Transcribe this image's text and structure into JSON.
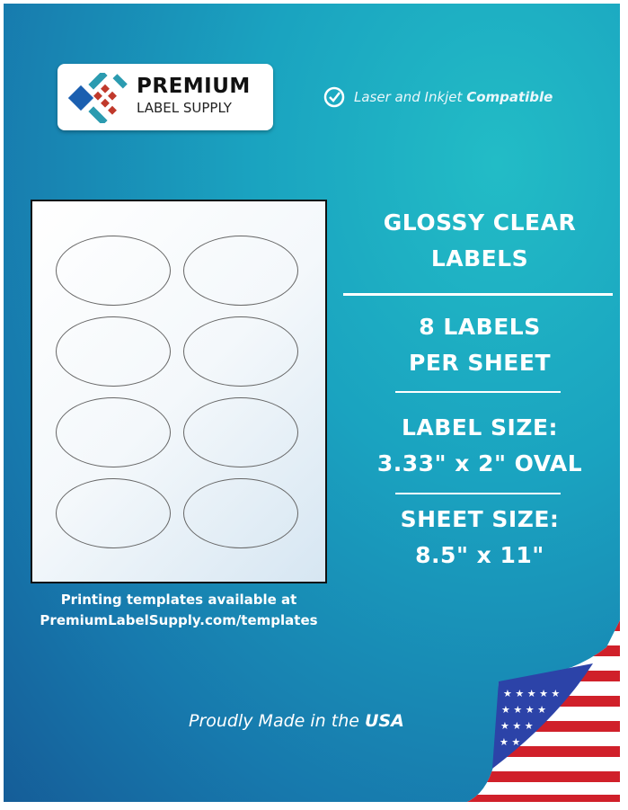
{
  "brand": {
    "line1": "PREMIUM",
    "line2": "LABEL SUPPLY"
  },
  "compat": {
    "icon": "check-circle-icon",
    "text": "Laser and Inkjet ",
    "bold": "Compatible"
  },
  "product": {
    "title": [
      "GLOSSY CLEAR",
      "LABELS"
    ],
    "count": [
      "8 LABELS",
      "PER SHEET"
    ],
    "label_size": [
      "LABEL SIZE:",
      "3.33\" x 2\" OVAL"
    ],
    "sheet_size": [
      "SHEET SIZE:",
      "8.5\" x 11\""
    ]
  },
  "templates": {
    "line1": "Printing templates available at",
    "line2": "PremiumLabelSupply.com/templates"
  },
  "made": {
    "text": "Proudly Made in the ",
    "bold": "USA"
  },
  "colors": {
    "background": "#1aa3c0",
    "accent_red": "#c0392b",
    "accent_blue": "#1b5fb0"
  }
}
